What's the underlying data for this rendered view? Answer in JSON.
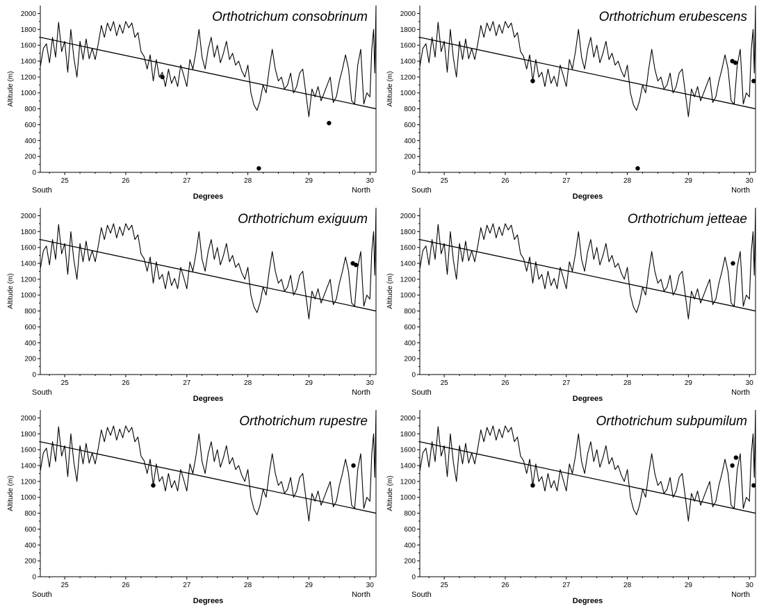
{
  "chart_data": [
    {
      "type": "line",
      "title": "Orthotrichum consobrinum",
      "xlabel": "Degrees",
      "ylabel": "Altitude (m)",
      "x_start_label": "South",
      "x_end_label": "North",
      "xlim": [
        24.6,
        30.1
      ],
      "ylim": [
        0,
        2100
      ],
      "xticks": [
        25,
        26,
        27,
        28,
        29,
        30
      ],
      "yticks": [
        0,
        200,
        400,
        600,
        800,
        1000,
        1200,
        1400,
        1600,
        1800,
        2000
      ],
      "trend_line": {
        "x": [
          24.6,
          30.1
        ],
        "y": [
          1700,
          800
        ]
      },
      "points": [
        {
          "x": 26.6,
          "y": 1200
        },
        {
          "x": 28.18,
          "y": 50
        },
        {
          "x": 29.33,
          "y": 620
        }
      ]
    },
    {
      "type": "line",
      "title": "Orthotrichum erubescens",
      "xlabel": "Degrees",
      "ylabel": "Altitude (m)",
      "x_start_label": "South",
      "x_end_label": "North",
      "xlim": [
        24.6,
        30.1
      ],
      "ylim": [
        0,
        2100
      ],
      "xticks": [
        25,
        26,
        27,
        28,
        29,
        30
      ],
      "yticks": [
        0,
        200,
        400,
        600,
        800,
        1000,
        1200,
        1400,
        1600,
        1800,
        2000
      ],
      "trend_line": {
        "x": [
          24.6,
          30.1
        ],
        "y": [
          1700,
          800
        ]
      },
      "points": [
        {
          "x": 26.45,
          "y": 1150
        },
        {
          "x": 28.17,
          "y": 50
        },
        {
          "x": 29.72,
          "y": 1400
        },
        {
          "x": 29.77,
          "y": 1380
        },
        {
          "x": 30.07,
          "y": 1150
        }
      ]
    },
    {
      "type": "line",
      "title": "Orthotrichum exiguum",
      "xlabel": "Degrees",
      "ylabel": "Altitude (m)",
      "x_start_label": "South",
      "x_end_label": "North",
      "xlim": [
        24.6,
        30.1
      ],
      "ylim": [
        0,
        2100
      ],
      "xticks": [
        25,
        26,
        27,
        28,
        29,
        30
      ],
      "yticks": [
        0,
        200,
        400,
        600,
        800,
        1000,
        1200,
        1400,
        1600,
        1800,
        2000
      ],
      "trend_line": {
        "x": [
          24.6,
          30.1
        ],
        "y": [
          1700,
          800
        ]
      },
      "points": [
        {
          "x": 29.72,
          "y": 1400
        },
        {
          "x": 29.77,
          "y": 1380
        }
      ]
    },
    {
      "type": "line",
      "title": "Orthotrichum jetteae",
      "xlabel": "Degrees",
      "ylabel": "Altitude (m)",
      "x_start_label": "South",
      "x_end_label": "North",
      "xlim": [
        24.6,
        30.1
      ],
      "ylim": [
        0,
        2100
      ],
      "xticks": [
        25,
        26,
        27,
        28,
        29,
        30
      ],
      "yticks": [
        0,
        200,
        400,
        600,
        800,
        1000,
        1200,
        1400,
        1600,
        1800,
        2000
      ],
      "trend_line": {
        "x": [
          24.6,
          30.1
        ],
        "y": [
          1700,
          800
        ]
      },
      "points": [
        {
          "x": 29.73,
          "y": 1400
        }
      ]
    },
    {
      "type": "line",
      "title": "Orthotrichum rupestre",
      "xlabel": "Degrees",
      "ylabel": "Altitude (m)",
      "x_start_label": "South",
      "x_end_label": "North",
      "xlim": [
        24.6,
        30.1
      ],
      "ylim": [
        0,
        2100
      ],
      "xticks": [
        25,
        26,
        27,
        28,
        29,
        30
      ],
      "yticks": [
        0,
        200,
        400,
        600,
        800,
        1000,
        1200,
        1400,
        1600,
        1800,
        2000
      ],
      "trend_line": {
        "x": [
          24.6,
          30.1
        ],
        "y": [
          1700,
          800
        ]
      },
      "points": [
        {
          "x": 26.45,
          "y": 1150
        },
        {
          "x": 29.73,
          "y": 1400
        }
      ]
    },
    {
      "type": "line",
      "title": "Orthotrichum subpumilum",
      "xlabel": "Degrees",
      "ylabel": "Altitude (m)",
      "x_start_label": "South",
      "x_end_label": "North",
      "xlim": [
        24.6,
        30.1
      ],
      "ylim": [
        0,
        2100
      ],
      "xticks": [
        25,
        26,
        27,
        28,
        29,
        30
      ],
      "yticks": [
        0,
        200,
        400,
        600,
        800,
        1000,
        1200,
        1400,
        1600,
        1800,
        2000
      ],
      "trend_line": {
        "x": [
          24.6,
          30.1
        ],
        "y": [
          1700,
          800
        ]
      },
      "points": [
        {
          "x": 26.45,
          "y": 1150
        },
        {
          "x": 29.72,
          "y": 1400
        },
        {
          "x": 29.78,
          "y": 1500
        },
        {
          "x": 30.07,
          "y": 1150
        }
      ]
    }
  ],
  "altitude_profile": {
    "x": [
      24.6,
      24.65,
      24.7,
      24.75,
      24.8,
      24.85,
      24.9,
      24.95,
      25.0,
      25.05,
      25.1,
      25.15,
      25.2,
      25.25,
      25.3,
      25.35,
      25.4,
      25.45,
      25.5,
      25.55,
      25.6,
      25.65,
      25.7,
      25.75,
      25.8,
      25.85,
      25.9,
      25.95,
      26.0,
      26.05,
      26.1,
      26.15,
      26.2,
      26.25,
      26.3,
      26.35,
      26.4,
      26.45,
      26.5,
      26.55,
      26.6,
      26.65,
      26.7,
      26.75,
      26.8,
      26.85,
      26.9,
      26.95,
      27.0,
      27.05,
      27.1,
      27.15,
      27.2,
      27.25,
      27.3,
      27.35,
      27.4,
      27.45,
      27.5,
      27.55,
      27.6,
      27.65,
      27.7,
      27.75,
      27.8,
      27.85,
      27.9,
      27.95,
      28.0,
      28.05,
      28.1,
      28.15,
      28.2,
      28.25,
      28.3,
      28.35,
      28.4,
      28.45,
      28.5,
      28.55,
      28.6,
      28.65,
      28.7,
      28.75,
      28.8,
      28.85,
      28.9,
      28.95,
      29.0,
      29.05,
      29.1,
      29.15,
      29.2,
      29.25,
      29.3,
      29.35,
      29.4,
      29.45,
      29.5,
      29.55,
      29.6,
      29.65,
      29.7,
      29.75,
      29.8,
      29.85,
      29.9,
      29.95,
      30.0,
      30.03,
      30.06,
      30.08,
      30.1
    ],
    "y": [
      1330,
      1560,
      1620,
      1380,
      1700,
      1450,
      1890,
      1520,
      1650,
      1260,
      1800,
      1440,
      1200,
      1650,
      1420,
      1680,
      1430,
      1560,
      1420,
      1620,
      1850,
      1700,
      1880,
      1780,
      1900,
      1720,
      1860,
      1750,
      1900,
      1820,
      1880,
      1700,
      1760,
      1520,
      1460,
      1300,
      1480,
      1150,
      1420,
      1200,
      1260,
      1080,
      1300,
      1120,
      1210,
      1080,
      1350,
      1220,
      1080,
      1420,
      1300,
      1520,
      1800,
      1450,
      1300,
      1550,
      1700,
      1450,
      1600,
      1380,
      1500,
      1650,
      1420,
      1500,
      1350,
      1400,
      1280,
      1200,
      1350,
      1000,
      850,
      780,
      900,
      1100,
      1000,
      1300,
      1550,
      1300,
      1150,
      1200,
      1050,
      1100,
      1250,
      1000,
      1080,
      1250,
      1300,
      1000,
      700,
      1050,
      950,
      1080,
      900,
      1000,
      1100,
      1200,
      880,
      950,
      1150,
      1300,
      1480,
      1300,
      900,
      860,
      1350,
      1550,
      860,
      1000,
      950,
      1550,
      1800,
      1250,
      2100
    ]
  }
}
